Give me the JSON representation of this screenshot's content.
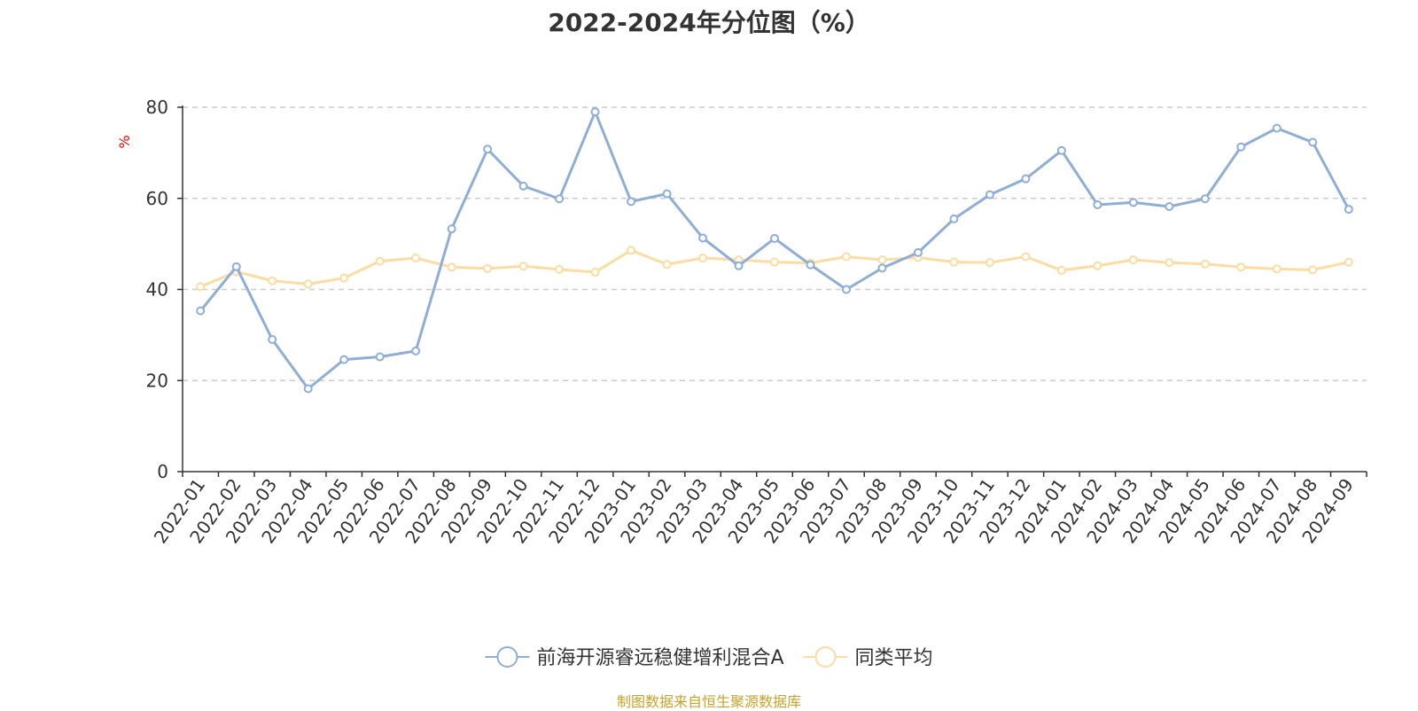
{
  "chart_data": {
    "type": "line",
    "title": "2022-2024年分位图（%）",
    "ylabel": "%",
    "xlabel": "",
    "ylim": [
      0,
      80
    ],
    "yticks": [
      0,
      20,
      40,
      60,
      80
    ],
    "grid": true,
    "legend_position": "bottom-center",
    "categories": [
      "2022-01",
      "2022-02",
      "2022-03",
      "2022-04",
      "2022-05",
      "2022-06",
      "2022-07",
      "2022-08",
      "2022-09",
      "2022-10",
      "2022-11",
      "2022-12",
      "2023-01",
      "2023-02",
      "2023-03",
      "2023-04",
      "2023-05",
      "2023-06",
      "2023-07",
      "2023-08",
      "2023-09",
      "2023-10",
      "2023-11",
      "2023-12",
      "2024-01",
      "2024-02",
      "2024-03",
      "2024-04",
      "2024-05",
      "2024-06",
      "2024-07",
      "2024-08",
      "2024-09"
    ],
    "series": [
      {
        "name": "前海开源睿远稳健增利混合A",
        "color": "#8eaed8",
        "values": [
          35.3,
          45.0,
          29.0,
          18.2,
          24.6,
          25.2,
          26.5,
          53.3,
          70.8,
          62.7,
          59.9,
          79.0,
          59.3,
          61.0,
          51.3,
          45.2,
          51.2,
          45.4,
          40.0,
          44.7,
          48.1,
          55.5,
          60.8,
          64.3,
          70.5,
          58.6,
          59.1,
          58.2,
          59.9,
          71.3,
          75.4,
          72.3,
          57.6
        ]
      },
      {
        "name": "同类平均",
        "color": "#fcdca0",
        "values": [
          40.6,
          43.9,
          41.9,
          41.2,
          42.5,
          46.2,
          46.9,
          44.9,
          44.6,
          45.1,
          44.4,
          43.8,
          48.6,
          45.5,
          46.9,
          46.5,
          46.0,
          45.8,
          47.2,
          46.5,
          47.0,
          46.0,
          45.9,
          47.2,
          44.2,
          45.2,
          46.5,
          45.9,
          45.6,
          44.9,
          44.5,
          44.3,
          46.0
        ]
      }
    ]
  },
  "colors": {
    "axis": "#333333",
    "grid": "#cccccc",
    "ylabel": "#ff0000",
    "source": "#c9a227"
  },
  "source_note": "制图数据来自恒生聚源数据库"
}
